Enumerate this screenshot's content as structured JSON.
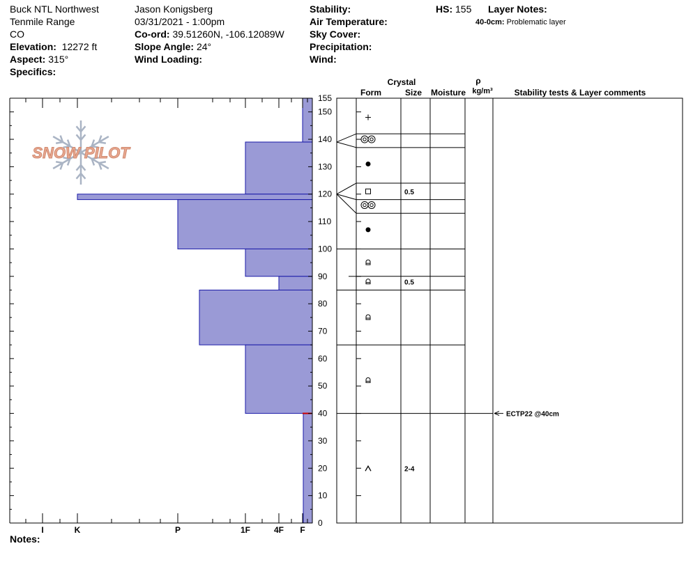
{
  "site": {
    "location": "Buck NTL Northwest",
    "range": "Tenmile Range",
    "state": "CO",
    "elevation_label": "Elevation:",
    "elevation": "12272 ft",
    "aspect_label": "Aspect:",
    "aspect": "315°",
    "specifics_label": "Specifics:"
  },
  "observer": {
    "name": "Jason Konigsberg",
    "datetime": "03/31/2021 - 1:00pm",
    "coord_label": "Co-ord:",
    "coord": "39.51260N, -106.12089W",
    "slope_label": "Slope Angle:",
    "slope": "24°",
    "wind_loading_label": "Wind Loading:"
  },
  "conditions": {
    "stability_label": "Stability:",
    "air_temp_label": "Air Temperature:",
    "sky_label": "Sky Cover:",
    "precip_label": "Precipitation:",
    "wind_label": "Wind:"
  },
  "hs": {
    "label": "HS:",
    "value": "155"
  },
  "layer_notes": {
    "title": "Layer Notes:",
    "depth": "40-0cm:",
    "text": "Problematic layer"
  },
  "notes_label": "Notes:",
  "logo_text": "SNOW PILOT",
  "colors": {
    "bar_fill": "#9a9ad6",
    "bar_stroke": "#1a1aa8",
    "grid": "#000000",
    "marker": "#cc0000",
    "logo": "#e8a890",
    "logo_flake": "#aab4c4"
  },
  "columns": {
    "crystal": "Crystal",
    "form": "Form",
    "size": "Size",
    "moisture": "Moisture",
    "rho": "ρ",
    "density_unit": "kg/m³",
    "stability": "Stability tests & Layer comments"
  },
  "chart_data": {
    "type": "bar",
    "orientation": "horizontal",
    "title": "",
    "xlabel": "",
    "ylabel": "",
    "ylim": [
      0,
      155
    ],
    "yticks": [
      0,
      10,
      20,
      30,
      40,
      50,
      60,
      70,
      80,
      90,
      100,
      110,
      120,
      130,
      140,
      150,
      155
    ],
    "hardness_scale": [
      "I",
      "K",
      "P",
      "1F",
      "4F",
      "F"
    ],
    "layers": [
      {
        "top": 155,
        "bottom": 139,
        "hardness": "F"
      },
      {
        "top": 139,
        "bottom": 120,
        "hardness": "1F"
      },
      {
        "top": 120,
        "bottom": 118,
        "hardness": "K"
      },
      {
        "top": 118,
        "bottom": 100,
        "hardness": "P"
      },
      {
        "top": 100,
        "bottom": 90,
        "hardness": "1F"
      },
      {
        "top": 90,
        "bottom": 85,
        "hardness": "4F"
      },
      {
        "top": 85,
        "bottom": 65,
        "hardness": "P+"
      },
      {
        "top": 65,
        "bottom": 40,
        "hardness": "1F"
      },
      {
        "top": 40,
        "bottom": 0,
        "hardness": "F+"
      }
    ],
    "layer_boundaries": [
      155,
      142,
      137,
      124,
      118,
      113,
      100,
      90,
      85,
      65,
      40,
      0
    ],
    "crystals": [
      {
        "depth": 148,
        "form": "plus",
        "size": ""
      },
      {
        "depth": 140,
        "form": "rounds-double",
        "size": ""
      },
      {
        "depth": 131,
        "form": "dot",
        "size": ""
      },
      {
        "depth": 121,
        "form": "square",
        "size": "0.5"
      },
      {
        "depth": 116,
        "form": "rounds-double",
        "size": ""
      },
      {
        "depth": 107,
        "form": "dot",
        "size": ""
      },
      {
        "depth": 95,
        "form": "faceted-round",
        "size": ""
      },
      {
        "depth": 88,
        "form": "faceted-round",
        "size": "0.5"
      },
      {
        "depth": 75,
        "form": "faceted-round",
        "size": ""
      },
      {
        "depth": 52,
        "form": "faceted-round",
        "size": ""
      },
      {
        "depth": 20,
        "form": "depth-hoar",
        "size": "2-4"
      }
    ],
    "stability_tests": [
      {
        "depth": 40,
        "text": "ECTP22 @40cm"
      }
    ]
  }
}
